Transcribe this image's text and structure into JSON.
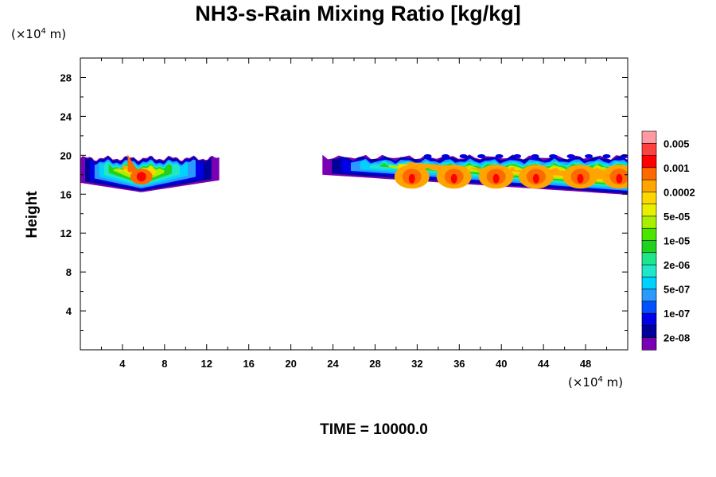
{
  "chart_data": {
    "type": "heatmap",
    "title": "NH3-s-Rain Mixing Ratio [kg/kg]",
    "ylabel": "Height",
    "x_unit": "(×10",
    "x_unit_exp": "4",
    "x_unit_tail": " m)",
    "y_unit": "(×10",
    "y_unit_exp": "4",
    "y_unit_tail": " m)",
    "footer": "TIME = 10000.0",
    "xlim": [
      0,
      52
    ],
    "ylim": [
      0,
      30
    ],
    "x_ticks": [
      "4",
      "8",
      "12",
      "16",
      "20",
      "24",
      "28",
      "32",
      "36",
      "40",
      "44",
      "48"
    ],
    "x_tick_values": [
      4,
      8,
      12,
      16,
      20,
      24,
      28,
      32,
      36,
      40,
      44,
      48
    ],
    "y_ticks": [
      "4",
      "8",
      "12",
      "16",
      "20",
      "24",
      "28"
    ],
    "y_tick_values": [
      4,
      8,
      12,
      16,
      20,
      24,
      28
    ],
    "colorbar": {
      "levels": [
        "0.005",
        "0.001",
        "0.0002",
        "5e-05",
        "1e-05",
        "2e-06",
        "5e-07",
        "1e-07",
        "2e-08"
      ],
      "colors": [
        "#ff9aa2",
        "#ff4040",
        "#ff0000",
        "#ff6a00",
        "#ffa500",
        "#ffd700",
        "#e8f000",
        "#a8f000",
        "#4ae600",
        "#1ed21e",
        "#1ee68c",
        "#22e6c8",
        "#00d2ff",
        "#2a9aff",
        "#0050ff",
        "#0000e6",
        "#00009b",
        "#7a00b4"
      ]
    },
    "regions": [
      {
        "name": "left rain band",
        "x_range": [
          0,
          13.2
        ],
        "top_height": 19.7,
        "bottom_height": 16.2,
        "peak_x": 5.8,
        "peak_height": 17.8,
        "peak_value": "0.001"
      },
      {
        "name": "right rain band",
        "x_range": [
          23,
          52
        ],
        "top_height": 19.8,
        "bottom_height": 15.8,
        "peaks_x": [
          31.5,
          35.5,
          39.5,
          43.3,
          47.5,
          51.2
        ],
        "peak_height": 17.8,
        "peak_value": "0.001"
      }
    ]
  }
}
